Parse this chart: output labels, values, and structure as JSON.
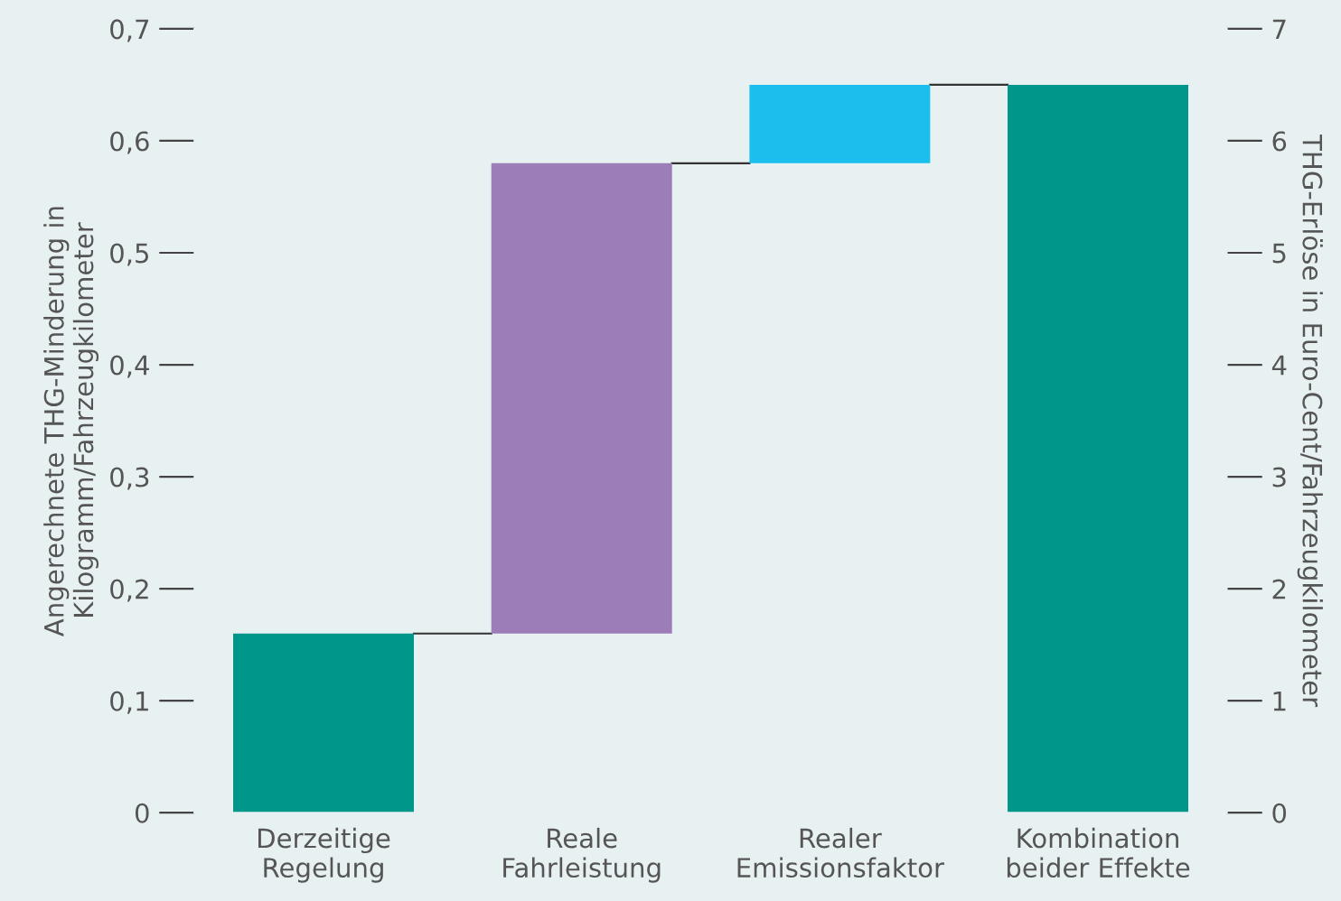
{
  "chart_data": {
    "type": "bar",
    "ylabel": "Angerechnete THG-Minderung in\nKilogramm/Fahrzeugkilometer",
    "y2label": "THG-Erlöse in Euro-Cent/Fahrzeugkilometer",
    "categories": [
      "Derzeitige\nRegelung",
      "Reale\nFahrleistung",
      "Realer\nEmissionsfaktor",
      "Kombination\nbeider Effekte"
    ],
    "values": [
      0.16,
      0.42,
      0.07,
      0.65
    ],
    "base": [
      0,
      0.16,
      0.58,
      0
    ],
    "colors": [
      "#00968a",
      "#9c7db8",
      "#1bbfee",
      "#00968a"
    ],
    "ylim": [
      0,
      0.7
    ],
    "yticks": [
      0,
      {
        "value": 0.1,
        "label": "0,1"
      },
      {
        "value": 0.2,
        "label": "0,2"
      },
      {
        "value": 0.3,
        "label": "0,3"
      },
      {
        "value": 0.4,
        "label": "0,4"
      },
      {
        "value": 0.5,
        "label": "0,5"
      },
      {
        "value": 0.6,
        "label": "0,6"
      },
      {
        "value": 0.7,
        "label": "0,7"
      }
    ],
    "y2lim": [
      0,
      7
    ],
    "y2ticks": [
      0,
      1,
      2,
      3,
      4,
      5,
      6,
      7
    ],
    "grid": false,
    "legend": false
  }
}
